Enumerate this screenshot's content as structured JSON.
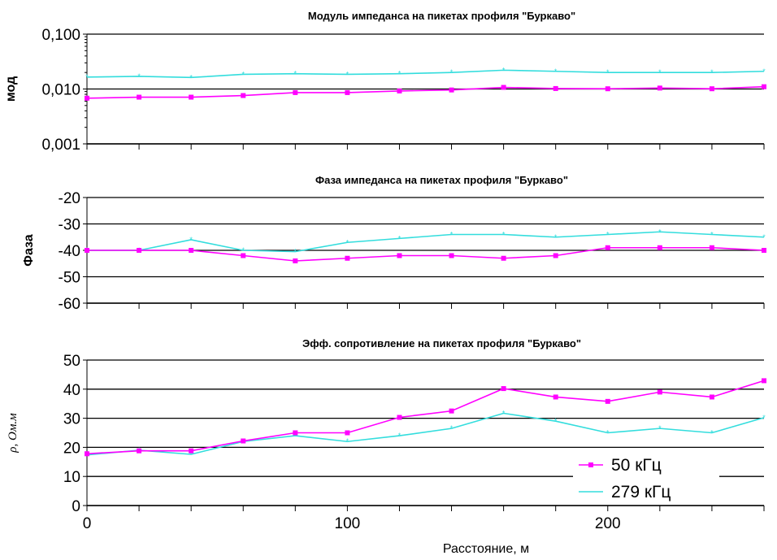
{
  "chart_data": [
    {
      "type": "line",
      "title": "Модуль импеданса на пикетах профиля \"Буркаво\"",
      "ylabel": "мод",
      "yscale": "log",
      "ylim": [
        0.001,
        0.1
      ],
      "yticks": [
        "0,001",
        "0,010",
        "0,100"
      ],
      "x": [
        0,
        20,
        40,
        60,
        80,
        100,
        120,
        140,
        160,
        180,
        200,
        220,
        240,
        260
      ],
      "series": [
        {
          "name": "50 кГц",
          "color": "#ff00ff",
          "values": [
            0.0068,
            0.0071,
            0.0071,
            0.0076,
            0.0086,
            0.0086,
            0.0092,
            0.0096,
            0.0107,
            0.0102,
            0.0101,
            0.0104,
            0.0101,
            0.011
          ]
        },
        {
          "name": "279 кГц",
          "color": "#33dddd",
          "values": [
            0.0165,
            0.017,
            0.0162,
            0.0185,
            0.019,
            0.0185,
            0.019,
            0.02,
            0.022,
            0.021,
            0.02,
            0.02,
            0.02,
            0.021
          ]
        }
      ]
    },
    {
      "type": "line",
      "title": "Фаза импеданса на пикетах профиля \"Буркаво\"",
      "ylabel": "Фаза",
      "ylim": [
        -60,
        -20
      ],
      "yticks": [
        "-60",
        "-50",
        "-40",
        "-30",
        "-20"
      ],
      "x": [
        0,
        20,
        40,
        60,
        80,
        100,
        120,
        140,
        160,
        180,
        200,
        220,
        240,
        260
      ],
      "series": [
        {
          "name": "50 кГц",
          "color": "#ff00ff",
          "values": [
            -40,
            -40,
            -40,
            -42,
            -44,
            -43,
            -42,
            -42,
            -43,
            -42,
            -39,
            -39,
            -39,
            -40
          ]
        },
        {
          "name": "279 кГц",
          "color": "#33dddd",
          "values": [
            -40,
            -40,
            -36,
            -40,
            -40.5,
            -37,
            -35.5,
            -34,
            -34,
            -35,
            -34,
            -33,
            -34,
            -35
          ]
        }
      ]
    },
    {
      "type": "line",
      "title": "Эфф. сопротивление на пикетах профиля \"Буркаво\"",
      "ylabel": "ρ, Ом.м",
      "xlabel": "Расстояние, м",
      "ylim": [
        0,
        50
      ],
      "yticks": [
        "0",
        "10",
        "20",
        "30",
        "40",
        "50"
      ],
      "xticks": [
        "0",
        "100",
        "200"
      ],
      "legend": "bottom-right",
      "x": [
        0,
        20,
        40,
        60,
        80,
        100,
        120,
        140,
        160,
        180,
        200,
        220,
        240,
        260
      ],
      "series": [
        {
          "name": "50 кГц",
          "color": "#ff00ff",
          "values": [
            17.8,
            18.8,
            18.8,
            22.2,
            25,
            25,
            30.3,
            32.5,
            40.2,
            37.3,
            35.8,
            39,
            37.3,
            42.9
          ]
        },
        {
          "name": "279 кГц",
          "color": "#33dddd",
          "values": [
            17.4,
            19,
            17.6,
            22,
            24,
            22,
            24,
            26.5,
            31.7,
            29,
            25,
            26.5,
            25,
            30.2
          ]
        }
      ]
    }
  ]
}
